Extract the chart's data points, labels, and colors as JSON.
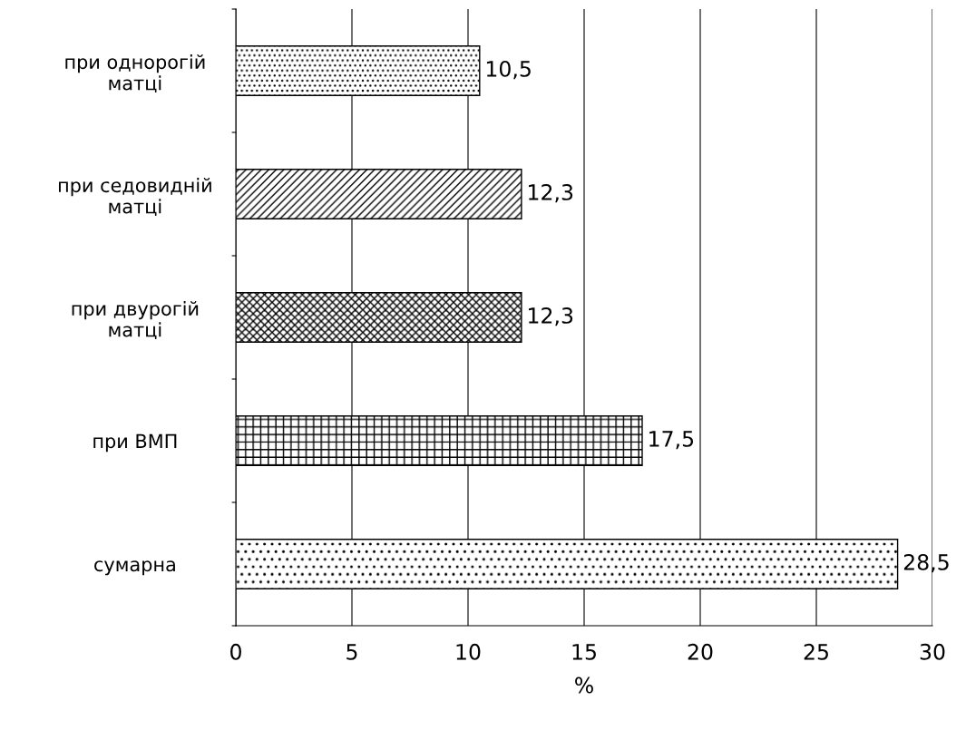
{
  "chart_data": {
    "type": "bar",
    "orientation": "horizontal",
    "xlabel": "%",
    "categories": [
      "при однорогій\nматці",
      "при седовидній\nматці",
      "при двурогій\nматці",
      "при ВМП",
      "сумарна"
    ],
    "values": [
      10.5,
      12.3,
      12.3,
      17.5,
      28.5
    ],
    "value_labels": [
      "10,5",
      "12,3",
      "12,3",
      "17,5",
      "28,5"
    ],
    "colors": [
      "#000000",
      "#000000",
      "#000000",
      "#000000",
      "#000000"
    ],
    "xlim": [
      0,
      30
    ],
    "xticks": [
      0,
      5,
      10,
      15,
      20,
      25,
      30
    ],
    "grid": "x",
    "legend": false
  }
}
